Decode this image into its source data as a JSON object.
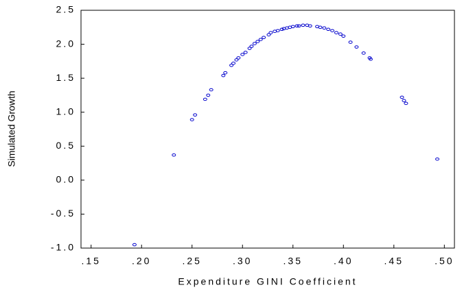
{
  "chart_data": {
    "type": "scatter",
    "x_label": "Expenditure GINI Coefficient",
    "y_label": "Simulated Growth",
    "color": "#0000cc",
    "xlim": [
      0.14,
      0.51
    ],
    "ylim": [
      -1.0,
      2.5
    ],
    "xticks": [
      {
        "value": 0.15,
        "label": ".15"
      },
      {
        "value": 0.2,
        "label": ".20"
      },
      {
        "value": 0.25,
        "label": ".25"
      },
      {
        "value": 0.3,
        "label": ".30"
      },
      {
        "value": 0.35,
        "label": ".35"
      },
      {
        "value": 0.4,
        "label": ".40"
      },
      {
        "value": 0.45,
        "label": ".45"
      },
      {
        "value": 0.5,
        "label": ".50"
      }
    ],
    "yticks": [
      {
        "value": -1,
        "label": "-1.0"
      },
      -0.5,
      {
        "value": 0,
        "label": "0.0"
      },
      0.5,
      {
        "value": 1,
        "label": "1.0"
      },
      1.5,
      {
        "value": 2,
        "label": "2.0"
      },
      2.5
    ],
    "x": [
      0.193,
      0.232,
      0.25,
      0.253,
      0.263,
      0.266,
      0.269,
      0.281,
      0.283,
      0.289,
      0.291,
      0.294,
      0.296,
      0.3,
      0.303,
      0.307,
      0.309,
      0.312,
      0.315,
      0.318,
      0.321,
      0.326,
      0.328,
      0.332,
      0.335,
      0.339,
      0.341,
      0.344,
      0.347,
      0.35,
      0.354,
      0.356,
      0.36,
      0.364,
      0.367,
      0.374,
      0.377,
      0.381,
      0.385,
      0.389,
      0.393,
      0.397,
      0.4,
      0.407,
      0.413,
      0.42,
      0.426,
      0.427,
      0.458,
      0.46,
      0.462,
      0.493
    ],
    "values": [
      -0.95,
      0.37,
      0.89,
      0.96,
      1.19,
      1.25,
      1.33,
      1.54,
      1.58,
      1.69,
      1.72,
      1.77,
      1.8,
      1.85,
      1.88,
      1.94,
      1.97,
      2.01,
      2.04,
      2.07,
      2.1,
      2.14,
      2.17,
      2.19,
      2.2,
      2.22,
      2.23,
      2.24,
      2.25,
      2.26,
      2.27,
      2.27,
      2.28,
      2.28,
      2.27,
      2.26,
      2.25,
      2.24,
      2.22,
      2.2,
      2.17,
      2.15,
      2.12,
      2.03,
      1.96,
      1.87,
      1.8,
      1.78,
      1.22,
      1.17,
      1.13,
      0.31
    ]
  }
}
